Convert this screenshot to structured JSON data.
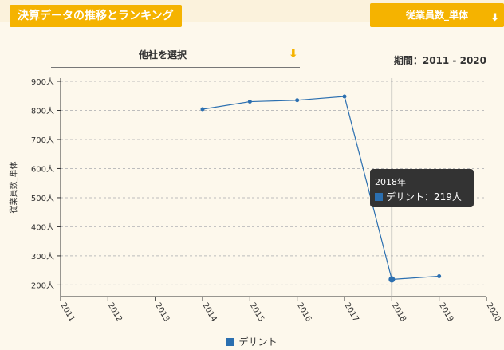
{
  "header": {
    "title": "決算データの推移とランキング",
    "metric_button": "従業員数_単体",
    "metric_arrow_icon": "arrow-down-icon"
  },
  "controls": {
    "company_select_label": "他社を選択",
    "select_arrow_icon": "arrow-down-icon",
    "period_label": "期間：2011 - 2020"
  },
  "tooltip": {
    "year": "2018年",
    "series_value": "デサント：219人"
  },
  "colors": {
    "accent": "#f5b300",
    "series": "#2b6fb0",
    "background": "#fdf8ec",
    "grid": "#bdbdbd"
  },
  "chart_data": {
    "type": "line",
    "title": "",
    "xlabel": "",
    "ylabel": "従業員数_単体",
    "x": [
      2014,
      2015,
      2016,
      2017,
      2018,
      2019
    ],
    "series": [
      {
        "name": "デサント",
        "values": [
          804,
          830,
          835,
          848,
          219,
          230
        ]
      }
    ],
    "x_ticks": [
      "2011",
      "2012",
      "2013",
      "2014",
      "2015",
      "2016",
      "2017",
      "2018",
      "2019",
      "2020"
    ],
    "y_ticks": [
      "200人",
      "300人",
      "400人",
      "500人",
      "600人",
      "700人",
      "800人",
      "900人"
    ],
    "ylim": [
      160,
      900
    ],
    "xlim": [
      2011,
      2020
    ],
    "grid": true,
    "legend": "bottom",
    "highlight_x": 2018
  }
}
